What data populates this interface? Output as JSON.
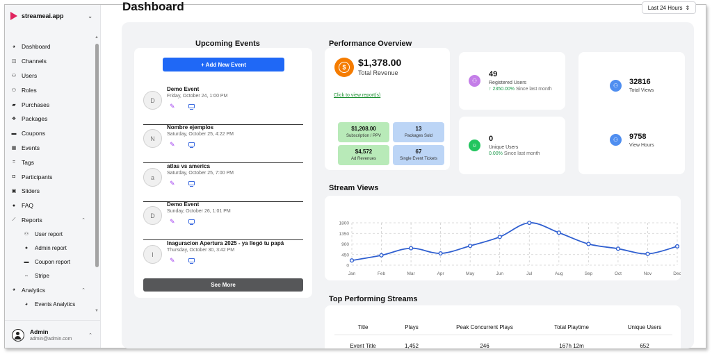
{
  "sidebar": {
    "brand": "streameai.app",
    "items": [
      {
        "label": "Dashboard",
        "icon": "dashboard-icon"
      },
      {
        "label": "Channels",
        "icon": "channels-icon"
      },
      {
        "label": "Users",
        "icon": "users-icon"
      },
      {
        "label": "Roles",
        "icon": "roles-icon"
      },
      {
        "label": "Purchases",
        "icon": "purchases-icon"
      },
      {
        "label": "Packages",
        "icon": "packages-icon"
      },
      {
        "label": "Coupons",
        "icon": "coupons-icon"
      },
      {
        "label": "Events",
        "icon": "events-icon"
      },
      {
        "label": "Tags",
        "icon": "tags-icon"
      },
      {
        "label": "Participants",
        "icon": "participants-icon"
      },
      {
        "label": "Sliders",
        "icon": "sliders-icon"
      },
      {
        "label": "FAQ",
        "icon": "faq-icon"
      },
      {
        "label": "Reports",
        "icon": "reports-icon"
      }
    ],
    "report_subitems": [
      {
        "label": "User report",
        "icon": "user-report-icon"
      },
      {
        "label": "Admin report",
        "icon": "admin-report-icon"
      },
      {
        "label": "Coupon report",
        "icon": "coupon-report-icon"
      },
      {
        "label": "Stripe",
        "icon": "stripe-icon"
      }
    ],
    "analytics": {
      "label": "Analytics",
      "icon": "analytics-icon"
    },
    "analytics_subitems": [
      {
        "label": "Events Analytics",
        "icon": "events-analytics-icon"
      }
    ],
    "user": {
      "name": "Admin",
      "email": "admin@admin.com"
    }
  },
  "header": {
    "title": "Dashboard",
    "range": "Last 24 Hours"
  },
  "upcoming_events": {
    "title": "Upcoming Events",
    "add_label": "+ Add New Event",
    "see_more": "See More",
    "events": [
      {
        "initial": "D",
        "name": "Demo Event",
        "date": "Friday, October 24, 1:00 PM"
      },
      {
        "initial": "N",
        "name": "Nombre ejemplos",
        "date": "Saturday, October 25, 4:22 PM"
      },
      {
        "initial": "a",
        "name": "atlas vs america",
        "date": "Saturday, October 25, 7:00 PM"
      },
      {
        "initial": "D",
        "name": "Demo Event",
        "date": "Sunday, October 26, 1:01 PM"
      },
      {
        "initial": "I",
        "name": "Inaguracion Apertura 2025 - ya llegó tu papá",
        "date": "Thursday, October 30, 3:42 PM"
      }
    ]
  },
  "performance": {
    "title": "Performance Overview",
    "revenue": "$1,378.00",
    "revenue_label": "Total Revenue",
    "link": "Click to view report(s)",
    "tiles": [
      {
        "value": "$1,208.00",
        "label": "Subscription / PPV",
        "color": "#b8eab8"
      },
      {
        "value": "13",
        "label": "Packages Sold",
        "color": "#bcd5f6"
      },
      {
        "value": "$4,572",
        "label": "Ad Revenues",
        "color": "#b8eab8"
      },
      {
        "value": "67",
        "label": "Single Event Tickets",
        "color": "#bcd5f6"
      }
    ],
    "registered": {
      "value": "49",
      "label": "Registered Users",
      "delta": "↑ 2350.00%",
      "delta_suffix": "Since last month"
    },
    "unique": {
      "value": "0",
      "label": "Unique Users",
      "delta": "0.00%",
      "delta_suffix": "Since last month"
    },
    "views": {
      "value": "32816",
      "label": "Total Views"
    },
    "hours": {
      "value": "9758",
      "label": "View Hours"
    }
  },
  "stream_views": {
    "title": "Stream Views"
  },
  "chart_data": {
    "type": "line",
    "title": "",
    "categories": [
      "Jan",
      "Feb",
      "Mar",
      "Apr",
      "May",
      "Jun",
      "Jul",
      "Aug",
      "Sep",
      "Oct",
      "Nov",
      "Dec"
    ],
    "values": [
      200,
      420,
      720,
      500,
      820,
      1200,
      1800,
      1380,
      900,
      700,
      480,
      800
    ],
    "yticks": [
      "0",
      "450",
      "900",
      "1350",
      "1800"
    ],
    "ylim": [
      0,
      1800
    ],
    "color": "#2f5fd0",
    "grid": true
  },
  "top_streams": {
    "title": "Top Performing Streams",
    "columns": [
      "Title",
      "Plays",
      "Peak Concurrent Plays",
      "Total Playtime",
      "Unique Users"
    ],
    "rows": [
      [
        "Event Title",
        "1,452",
        "246",
        "167h 12m",
        "652"
      ]
    ]
  }
}
